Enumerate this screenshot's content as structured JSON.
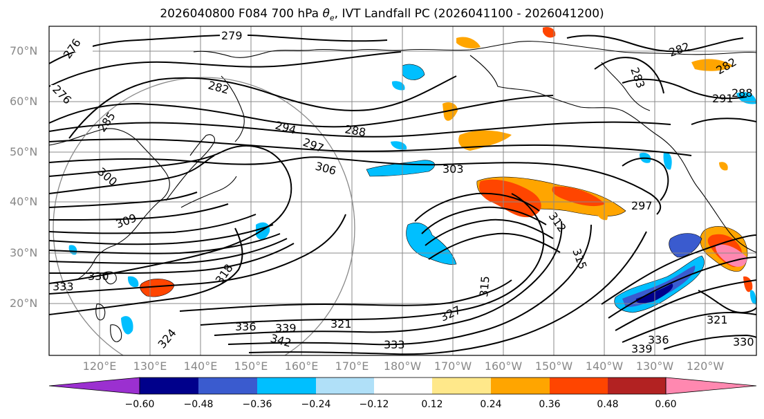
{
  "title_prefix": "2026040800 F084 700 hPa ",
  "title_theta": "θ",
  "title_sub": "e",
  "title_suffix": ", IVT Landfall PC (2026041100 - 2026041200)",
  "lat_labels": [
    "70°N",
    "60°N",
    "50°N",
    "40°N",
    "30°N",
    "20°N"
  ],
  "lon_labels": [
    "120°E",
    "130°E",
    "140°E",
    "150°E",
    "160°E",
    "170°E",
    "180°W",
    "170°W",
    "160°W",
    "150°W",
    "140°W",
    "130°W",
    "120°W"
  ],
  "contour_labels": [
    "276",
    "276",
    "279",
    "282",
    "285",
    "288",
    "291",
    "288",
    "294",
    "297",
    "300",
    "303",
    "306",
    "309",
    "312",
    "315",
    "315",
    "318",
    "321",
    "321",
    "324",
    "327",
    "330",
    "330",
    "333",
    "333",
    "336",
    "336",
    "339",
    "339",
    "342",
    "297",
    "283",
    "282",
    "282"
  ],
  "colorbar": {
    "ticks": [
      "−0.60",
      "−0.48",
      "−0.36",
      "−0.24",
      "−0.12",
      "0.12",
      "0.24",
      "0.36",
      "0.48",
      "0.60"
    ],
    "colors": [
      "#9b30d0",
      "#00008b",
      "#3a5bcf",
      "#00bfff",
      "#b0e0f8",
      "#ffffff",
      "#ffe88a",
      "#ffa500",
      "#ff4500",
      "#b22222",
      "#ff88b0",
      "#ff88b0"
    ]
  }
}
